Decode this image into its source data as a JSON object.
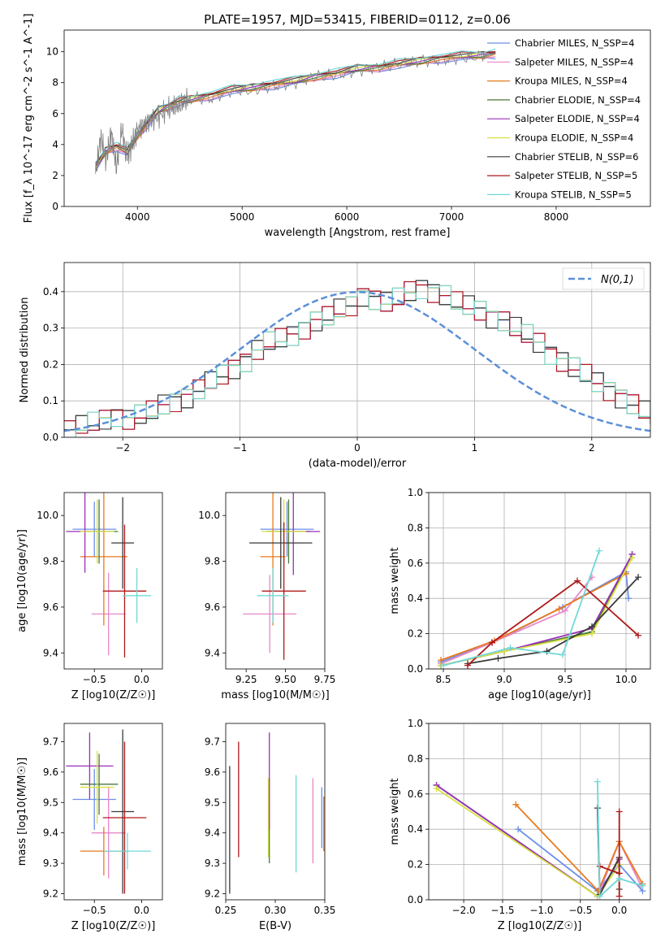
{
  "figure_title": "PLATE=1957, MJD=53415, FIBERID=0112, z=0.06",
  "colors": {
    "Chabrier MILES": "#6b8fe8",
    "Salpeter MILES": "#e887c8",
    "Kroupa MILES": "#e87a1e",
    "Chabrier ELODIE": "#4a7a3a",
    "Salpeter ELODIE": "#9a30b8",
    "Kroupa ELODIE": "#d8e040",
    "Chabrier STELIB": "#3a3a3a",
    "Salpeter STELIB": "#b01818",
    "Kroupa STELIB": "#70d8d8",
    "data": "#808080",
    "normal": "#5b8fd8"
  },
  "chart_data": [
    {
      "id": "spectrum",
      "type": "line",
      "title": "PLATE=1957, MJD=53415, FIBERID=0112, z=0.06",
      "xlabel": "wavelength [Angstrom, rest frame]",
      "ylabel": "Flux [f_λ 10^-17 erg cm^-2 s^-1 A^-1]",
      "xlim": [
        3300,
        8900
      ],
      "ylim": [
        0,
        11.4
      ],
      "xticks": [
        4000,
        5000,
        6000,
        7000,
        8000
      ],
      "yticks": [
        0,
        2,
        4,
        6,
        8,
        10
      ],
      "legend_position": "right",
      "legend": [
        "Chabrier MILES, N_SSP=4",
        "Salpeter MILES, N_SSP=4",
        "Kroupa MILES, N_SSP=4",
        "Chabrier ELODIE, N_SSP=4",
        "Salpeter ELODIE, N_SSP=4",
        "Kroupa ELODIE, N_SSP=4",
        "Chabrier STELIB, N_SSP=6",
        "Salpeter STELIB, N_SSP=5",
        "Kroupa STELIB, N_SSP=5"
      ],
      "model_continuum": {
        "x": [
          3600,
          3700,
          3800,
          3900,
          4000,
          4100,
          4200,
          4300,
          4400,
          4500,
          4700,
          4900,
          5100,
          5300,
          5500,
          5700,
          5900,
          6100,
          6300,
          6500,
          6700,
          6900,
          7100,
          7300,
          7420
        ],
        "y": [
          2.5,
          3.6,
          3.9,
          3.5,
          4.6,
          5.4,
          6.2,
          6.5,
          6.8,
          6.9,
          7.2,
          7.5,
          7.7,
          7.9,
          8.1,
          8.4,
          8.6,
          8.9,
          9.0,
          9.2,
          9.4,
          9.6,
          9.7,
          9.8,
          9.9
        ]
      },
      "data_spectrum": {
        "x": [
          3600,
          3650,
          3700,
          3750,
          3800,
          3850,
          3900,
          3950,
          4000,
          4100,
          4200,
          4300,
          4400,
          4500,
          4700,
          4900,
          5100,
          5300,
          5500,
          5700,
          5900,
          6100,
          6300,
          6500,
          6700,
          6900,
          7100,
          7300,
          7420
        ],
        "y": [
          2.0,
          4.5,
          3.0,
          4.8,
          2.5,
          5.0,
          3.2,
          4.0,
          5.0,
          5.5,
          5.8,
          6.3,
          6.5,
          7.0,
          7.0,
          7.5,
          7.5,
          7.8,
          8.0,
          8.4,
          8.5,
          8.8,
          9.0,
          9.2,
          9.4,
          9.5,
          9.6,
          9.7,
          9.9
        ]
      }
    },
    {
      "id": "residual_histogram",
      "type": "line",
      "xlabel": "(data-model)/error",
      "ylabel": "Normed distribution",
      "xlim": [
        -2.5,
        2.5
      ],
      "ylim": [
        0,
        0.48
      ],
      "xticks": [
        -2,
        -1,
        0,
        1,
        2
      ],
      "yticks": [
        0.0,
        0.1,
        0.2,
        0.3,
        0.4
      ],
      "legend": [
        "N(0,1)"
      ],
      "legend_position": "top-right",
      "bin_width": 0.1,
      "bin_start": -2.5,
      "hist_values": [
        0.02,
        0.03,
        0.04,
        0.05,
        0.06,
        0.05,
        0.06,
        0.07,
        0.09,
        0.1,
        0.11,
        0.13,
        0.15,
        0.17,
        0.19,
        0.21,
        0.24,
        0.26,
        0.27,
        0.28,
        0.3,
        0.32,
        0.33,
        0.35,
        0.36,
        0.39,
        0.38,
        0.37,
        0.38,
        0.4,
        0.41,
        0.4,
        0.39,
        0.37,
        0.36,
        0.35,
        0.33,
        0.32,
        0.3,
        0.28,
        0.26,
        0.23,
        0.21,
        0.19,
        0.17,
        0.15,
        0.13,
        0.11,
        0.09,
        0.07,
        0.06
      ]
    },
    {
      "id": "age_vs_Z",
      "type": "scatter",
      "xlabel": "Z [log10(Z/Z☉)]",
      "ylabel": "age [log10(age/yr)]",
      "xlim": [
        -0.82,
        0.22
      ],
      "ylim": [
        9.33,
        10.1
      ],
      "xticks": [
        -0.5,
        0.0
      ],
      "yticks": [
        9.4,
        9.6,
        9.8,
        10.0
      ],
      "points": [
        {
          "series": "Chabrier MILES",
          "x": -0.5,
          "y": 9.94,
          "xerr": 0.23,
          "yerr": 0.12
        },
        {
          "series": "Salpeter MILES",
          "x": -0.35,
          "y": 9.57,
          "xerr": 0.18,
          "yerr": 0.18
        },
        {
          "series": "Kroupa MILES",
          "x": -0.4,
          "y": 9.82,
          "xerr": 0.25,
          "yerr": 0.3
        },
        {
          "series": "Chabrier ELODIE",
          "x": -0.45,
          "y": 9.93,
          "xerr": 0.2,
          "yerr": 0.14
        },
        {
          "series": "Salpeter ELODIE",
          "x": -0.6,
          "y": 9.93,
          "xerr": 0.2,
          "yerr": 0.18
        },
        {
          "series": "Kroupa ELODIE",
          "x": -0.47,
          "y": 9.93,
          "xerr": 0.18,
          "yerr": 0.14
        },
        {
          "series": "Chabrier STELIB",
          "x": -0.2,
          "y": 9.88,
          "xerr": 0.12,
          "yerr": 0.2
        },
        {
          "series": "Salpeter STELIB",
          "x": -0.18,
          "y": 9.67,
          "xerr": 0.23,
          "yerr": 0.29
        },
        {
          "series": "Kroupa STELIB",
          "x": -0.05,
          "y": 9.65,
          "xerr": 0.15,
          "yerr": 0.12
        }
      ]
    },
    {
      "id": "age_vs_mass",
      "type": "scatter",
      "xlabel": "mass [log10(M/M☉)]",
      "ylabel": "",
      "xlim": [
        9.12,
        9.75
      ],
      "ylim": [
        9.33,
        10.1
      ],
      "xticks": [
        9.25,
        9.5,
        9.75
      ],
      "yticks": [
        9.4,
        9.6,
        9.8,
        10.0
      ],
      "points": [
        {
          "series": "Chabrier MILES",
          "x": 9.51,
          "y": 9.94,
          "xerr": 0.17,
          "yerr": 0.12
        },
        {
          "series": "Salpeter MILES",
          "x": 9.4,
          "y": 9.57,
          "xerr": 0.17,
          "yerr": 0.17
        },
        {
          "series": "Kroupa MILES",
          "x": 9.42,
          "y": 9.82,
          "xerr": 0.08,
          "yerr": 0.3
        },
        {
          "series": "Chabrier ELODIE",
          "x": 9.52,
          "y": 9.93,
          "xerr": 0.14,
          "yerr": 0.14
        },
        {
          "series": "Salpeter ELODIE",
          "x": 9.55,
          "y": 9.93,
          "xerr": 0.17,
          "yerr": 0.19
        },
        {
          "series": "Kroupa ELODIE",
          "x": 9.49,
          "y": 9.93,
          "xerr": 0.14,
          "yerr": 0.14
        },
        {
          "series": "Chabrier STELIB",
          "x": 9.47,
          "y": 9.88,
          "xerr": 0.2,
          "yerr": 0.2
        },
        {
          "series": "Salpeter STELIB",
          "x": 9.49,
          "y": 9.67,
          "xerr": 0.14,
          "yerr": 0.3
        },
        {
          "series": "Kroupa STELIB",
          "x": 9.42,
          "y": 9.65,
          "xerr": 0.1,
          "yerr": 0.12
        }
      ]
    },
    {
      "id": "weight_vs_age",
      "type": "line",
      "xlabel": "age [log10(age/yr)]",
      "ylabel": "mass weight",
      "xlim": [
        8.38,
        10.2
      ],
      "ylim": [
        0,
        1.0
      ],
      "xticks": [
        8.5,
        9.0,
        9.5,
        10.0
      ],
      "yticks": [
        0.0,
        0.2,
        0.4,
        0.6,
        0.8,
        1.0
      ],
      "series": [
        {
          "name": "Chabrier MILES",
          "x": [
            8.48,
            8.9,
            9.48,
            10.0,
            10.02
          ],
          "y": [
            0.04,
            0.15,
            0.35,
            0.55,
            0.4
          ]
        },
        {
          "name": "Salpeter MILES",
          "x": [
            8.48,
            8.9,
            9.5,
            9.72
          ],
          "y": [
            0.03,
            0.15,
            0.33,
            0.52
          ]
        },
        {
          "name": "Kroupa MILES",
          "x": [
            8.48,
            8.92,
            9.45,
            10.0
          ],
          "y": [
            0.05,
            0.16,
            0.34,
            0.54
          ]
        },
        {
          "name": "Chabrier ELODIE",
          "x": [
            8.48,
            9.0,
            9.72,
            10.05
          ],
          "y": [
            0.02,
            0.1,
            0.21,
            0.65
          ]
        },
        {
          "name": "Salpeter ELODIE",
          "x": [
            8.48,
            9.0,
            9.72,
            10.05
          ],
          "y": [
            0.02,
            0.1,
            0.23,
            0.65
          ]
        },
        {
          "name": "Kroupa ELODIE",
          "x": [
            8.48,
            9.0,
            9.72,
            10.05
          ],
          "y": [
            0.02,
            0.1,
            0.2,
            0.63
          ]
        },
        {
          "name": "Chabrier STELIB",
          "x": [
            8.7,
            8.95,
            9.35,
            9.72,
            10.1
          ],
          "y": [
            0.03,
            0.06,
            0.1,
            0.24,
            0.52
          ]
        },
        {
          "name": "Salpeter STELIB",
          "x": [
            8.7,
            8.9,
            9.6,
            10.1
          ],
          "y": [
            0.02,
            0.15,
            0.5,
            0.19
          ]
        },
        {
          "name": "Kroupa STELIB",
          "x": [
            8.5,
            9.05,
            9.48,
            9.78
          ],
          "y": [
            0.02,
            0.12,
            0.08,
            0.67
          ]
        }
      ]
    },
    {
      "id": "mass_vs_Z",
      "type": "scatter",
      "xlabel": "Z [log10(Z/Z☉)]",
      "ylabel": "mass [log10(M/M☉)]",
      "xlim": [
        -0.82,
        0.22
      ],
      "ylim": [
        9.18,
        9.76
      ],
      "xticks": [
        -0.5,
        0.0
      ],
      "yticks": [
        9.2,
        9.3,
        9.4,
        9.5,
        9.6,
        9.7
      ],
      "points": [
        {
          "series": "Chabrier MILES",
          "x": -0.5,
          "y": 9.51,
          "xerr": 0.23,
          "yerr": 0.1
        },
        {
          "series": "Salpeter MILES",
          "x": -0.35,
          "y": 9.4,
          "xerr": 0.18,
          "yerr": 0.15
        },
        {
          "series": "Kroupa MILES",
          "x": -0.4,
          "y": 9.34,
          "xerr": 0.25,
          "yerr": 0.08
        },
        {
          "series": "Chabrier ELODIE",
          "x": -0.45,
          "y": 9.56,
          "xerr": 0.2,
          "yerr": 0.1
        },
        {
          "series": "Salpeter ELODIE",
          "x": -0.55,
          "y": 9.62,
          "xerr": 0.25,
          "yerr": 0.11
        },
        {
          "series": "Kroupa ELODIE",
          "x": -0.47,
          "y": 9.55,
          "xerr": 0.18,
          "yerr": 0.12
        },
        {
          "series": "Chabrier STELIB",
          "x": -0.2,
          "y": 9.47,
          "xerr": 0.12,
          "yerr": 0.27
        },
        {
          "series": "Salpeter STELIB",
          "x": -0.18,
          "y": 9.45,
          "xerr": 0.23,
          "yerr": 0.25
        },
        {
          "series": "Kroupa STELIB",
          "x": -0.15,
          "y": 9.34,
          "xerr": 0.25,
          "yerr": 0.06
        }
      ]
    },
    {
      "id": "mass_vs_EBV",
      "type": "scatter",
      "xlabel": "E(B-V)",
      "ylabel": "",
      "xlim": [
        0.25,
        0.35
      ],
      "ylim": [
        9.18,
        9.76
      ],
      "xticks": [
        0.25,
        0.3,
        0.35
      ],
      "yticks": [
        9.2,
        9.3,
        9.4,
        9.5,
        9.6,
        9.7
      ],
      "points": [
        {
          "series": "Chabrier MILES",
          "x": 0.347,
          "y": 9.45,
          "yerr": 0.1
        },
        {
          "series": "Salpeter MILES",
          "x": 0.338,
          "y": 9.44,
          "yerr": 0.14
        },
        {
          "series": "Kroupa MILES",
          "x": 0.349,
          "y": 9.43,
          "yerr": 0.09
        },
        {
          "series": "Chabrier ELODIE",
          "x": 0.294,
          "y": 9.44,
          "yerr": 0.14
        },
        {
          "series": "Salpeter ELODIE",
          "x": 0.294,
          "y": 9.57,
          "yerr": 0.16
        },
        {
          "series": "Kroupa ELODIE",
          "x": 0.293,
          "y": 9.45,
          "yerr": 0.13
        },
        {
          "series": "Chabrier STELIB",
          "x": 0.254,
          "y": 9.41,
          "yerr": 0.21
        },
        {
          "series": "Salpeter STELIB",
          "x": 0.263,
          "y": 9.51,
          "yerr": 0.19
        },
        {
          "series": "Kroupa STELIB",
          "x": 0.321,
          "y": 9.43,
          "yerr": 0.16
        }
      ]
    },
    {
      "id": "weight_vs_Z",
      "type": "line",
      "xlabel": "Z [log10(Z/Z☉)]",
      "ylabel": "mass weight",
      "xlim": [
        -2.45,
        0.4
      ],
      "ylim": [
        0,
        1.0
      ],
      "xticks": [
        -2.0,
        -1.5,
        -1.0,
        -0.5,
        0.0
      ],
      "yticks": [
        0.0,
        0.2,
        0.4,
        0.6,
        0.8,
        1.0
      ],
      "series": [
        {
          "name": "Chabrier MILES",
          "x": [
            -1.3,
            -0.28,
            0.0,
            0.3
          ],
          "y": [
            0.4,
            0.05,
            0.2,
            0.05
          ]
        },
        {
          "name": "Salpeter MILES",
          "x": [
            -0.28,
            -0.25,
            0.0,
            0.28
          ],
          "y": [
            0.52,
            0.05,
            0.33,
            0.08
          ]
        },
        {
          "name": "Kroupa MILES",
          "x": [
            -1.33,
            -0.27,
            0.0,
            0.3
          ],
          "y": [
            0.54,
            0.05,
            0.33,
            0.09
          ]
        },
        {
          "name": "Chabrier ELODIE",
          "x": [
            -2.35,
            -0.28,
            0.0
          ],
          "y": [
            0.65,
            0.02,
            0.2
          ]
        },
        {
          "name": "Salpeter ELODIE",
          "x": [
            -2.35,
            -0.28,
            0.0
          ],
          "y": [
            0.65,
            0.02,
            0.23
          ]
        },
        {
          "name": "Kroupa ELODIE",
          "x": [
            -2.35,
            -0.28,
            0.0
          ],
          "y": [
            0.63,
            0.02,
            0.2
          ]
        },
        {
          "name": "Chabrier STELIB",
          "x": [
            -0.28,
            -0.25,
            0.0,
            0.0
          ],
          "y": [
            0.52,
            0.03,
            0.24,
            0.06
          ]
        },
        {
          "name": "Salpeter STELIB",
          "x": [
            -0.25,
            0.0,
            0.0,
            0.0
          ],
          "y": [
            0.19,
            0.15,
            0.02,
            0.5
          ]
        },
        {
          "name": "Kroupa STELIB",
          "x": [
            -0.28,
            -0.25,
            0.0,
            0.3
          ],
          "y": [
            0.67,
            0.02,
            0.12,
            0.08
          ]
        }
      ]
    }
  ]
}
